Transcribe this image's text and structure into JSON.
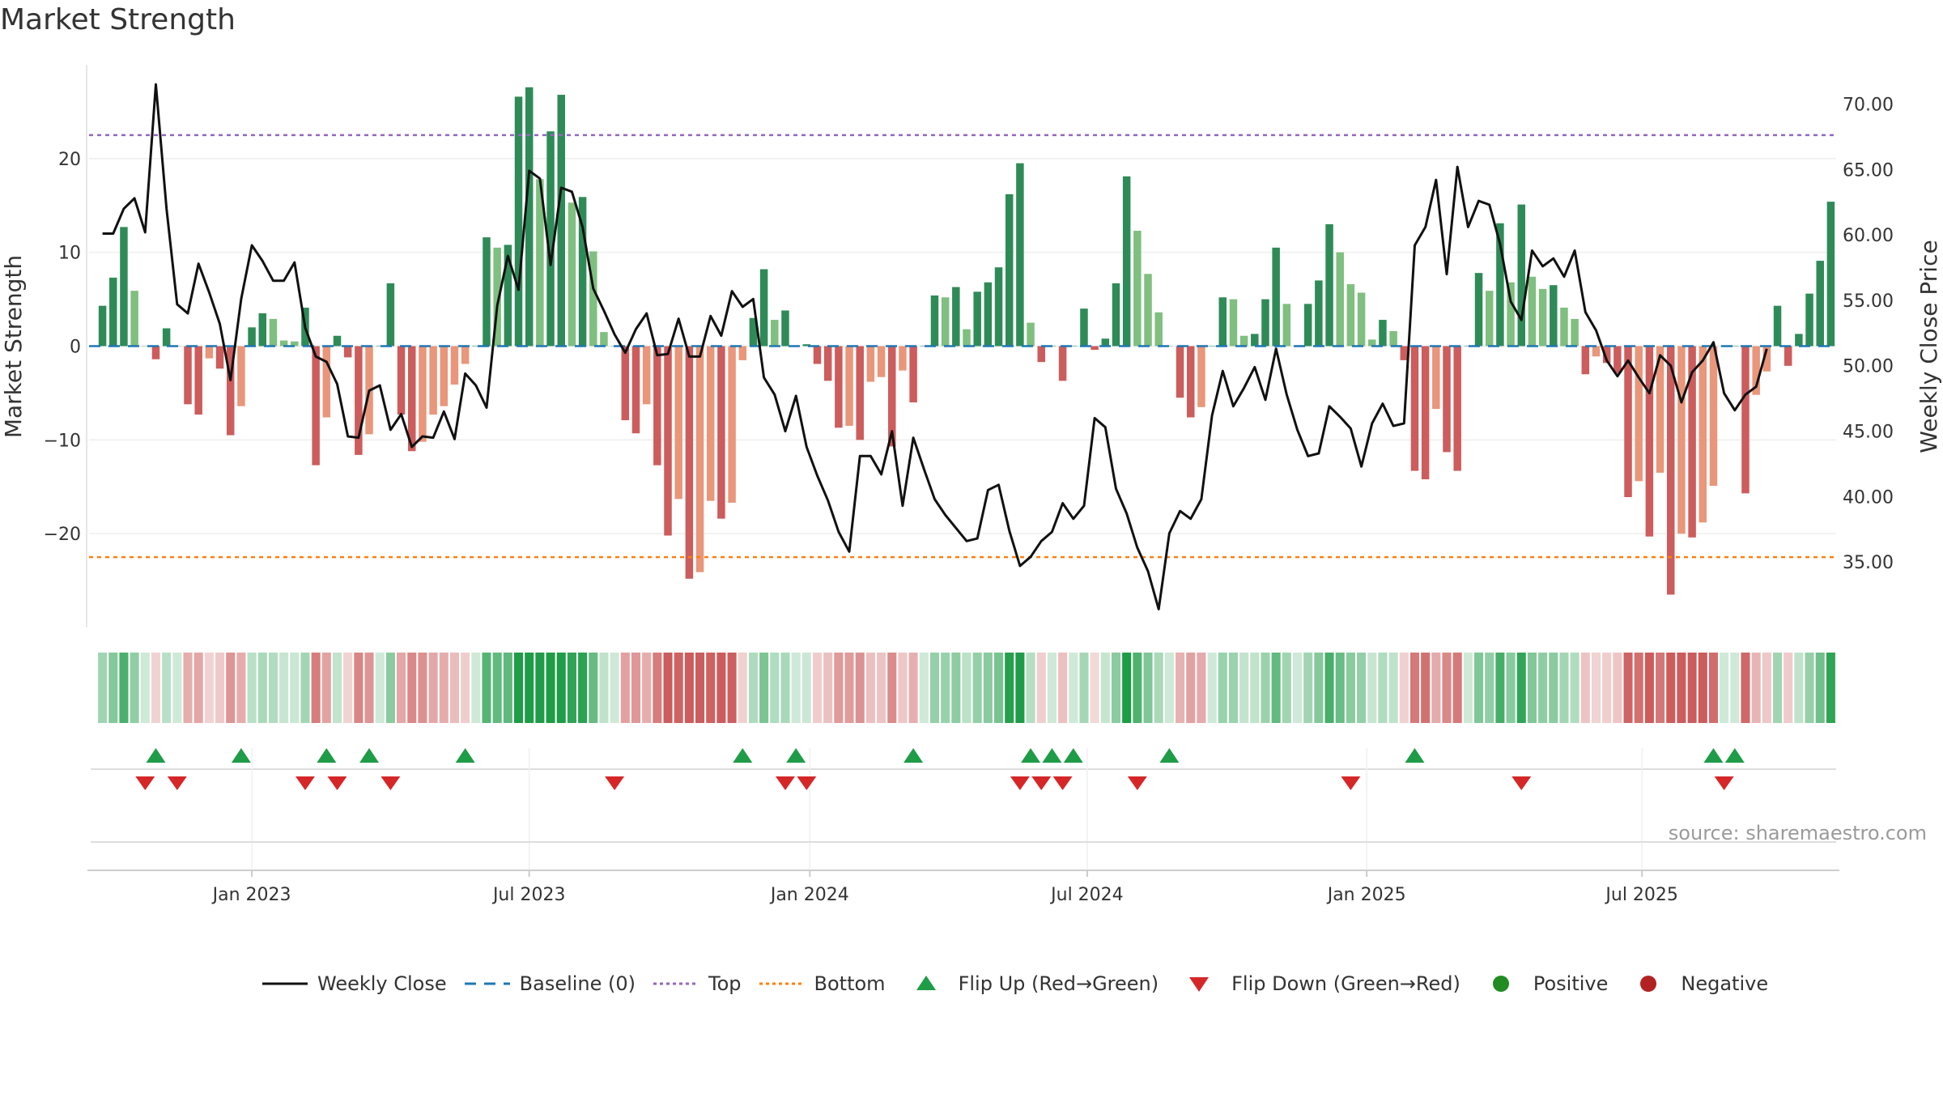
{
  "title": "Market Strength",
  "source": "source: sharemaestro.com",
  "colors": {
    "strong_pos": "#2e8b57",
    "weak_pos": "#7fbf7f",
    "strong_neg": "#cd5c5c",
    "weak_neg": "#e9967a",
    "close": "#111111",
    "baseline": "#1f77b4",
    "top": "#9467bd",
    "bottom": "#ff7f0e",
    "flip_up": "#1e9c47",
    "flip_down": "#d62728",
    "positive": "#228b22",
    "negative": "#b22222"
  },
  "chart_data": {
    "type": "bar",
    "title": "Market Strength",
    "ylabel": "Market Strength",
    "y2label": "Weekly Close Price",
    "ylim": [
      -30,
      30
    ],
    "y2lim": [
      30,
      73
    ],
    "yticks": [
      -20,
      -10,
      0,
      10,
      20
    ],
    "yticklabels": [
      "−20",
      "−10",
      "0",
      "10",
      "20"
    ],
    "y2ticks": [
      35,
      40,
      45,
      50,
      55,
      60,
      65,
      70
    ],
    "y2ticklabels": [
      "35.00",
      "40.00",
      "45.00",
      "50.00",
      "55.00",
      "60.00",
      "65.00",
      "70.00"
    ],
    "xticks": [
      "Jan 2023",
      "Jul 2023",
      "Jan 2024",
      "Jul 2024",
      "Jan 2025",
      "Jul 2025"
    ],
    "xtick_positions": [
      14,
      40,
      66.3,
      92.3,
      118.5,
      144.3
    ],
    "top_level": 22.5,
    "bottom_level": -22.5,
    "baseline": 0,
    "strength": [
      4.3,
      7.3,
      12.7,
      5.9,
      0.0,
      -1.4,
      1.9,
      0.0,
      -6.2,
      -7.3,
      -1.3,
      -2.4,
      -9.5,
      -6.4,
      2.0,
      3.5,
      2.9,
      0.6,
      0.5,
      4.1,
      -12.7,
      -7.6,
      1.1,
      -1.2,
      -11.6,
      -9.4,
      0.0,
      6.7,
      -7.3,
      -11.2,
      -10.2,
      -7.3,
      -6.4,
      -4.1,
      -1.9,
      0.0,
      11.6,
      10.5,
      10.8,
      26.6,
      27.6,
      17.8,
      22.9,
      26.8,
      15.3,
      15.9,
      10.1,
      1.5,
      0.0,
      -7.9,
      -9.3,
      -6.2,
      -12.7,
      -20.2,
      -16.3,
      -24.8,
      -24.1,
      -16.5,
      -18.4,
      -16.7,
      -1.5,
      3.0,
      8.2,
      2.8,
      3.8,
      0.0,
      0.2,
      -1.9,
      -3.7,
      -8.7,
      -8.5,
      -10.0,
      -3.8,
      -3.3,
      -10.7,
      -2.6,
      -6.0,
      0.0,
      5.4,
      5.2,
      6.3,
      1.8,
      5.8,
      6.8,
      8.4,
      16.2,
      19.5,
      2.5,
      -1.7,
      0.0,
      -3.7,
      0.0,
      4.0,
      -0.4,
      0.8,
      6.7,
      18.1,
      12.3,
      7.7,
      3.6,
      0.0,
      -5.5,
      -7.6,
      -6.5,
      0.0,
      5.2,
      5.0,
      1.1,
      1.3,
      5.0,
      10.5,
      4.5,
      0.0,
      4.5,
      7.0,
      13.0,
      10.0,
      6.6,
      5.7,
      0.7,
      2.8,
      1.6,
      -1.5,
      -13.3,
      -14.2,
      -6.7,
      -11.3,
      -13.3,
      0.0,
      7.8,
      5.9,
      13.1,
      6.8,
      15.1,
      7.4,
      6.1,
      6.5,
      4.1,
      2.9,
      -3.0,
      -1.1,
      -1.8,
      -2.9,
      -16.1,
      -14.4,
      -20.3,
      -13.5,
      -26.5,
      -20.0,
      -20.4,
      -18.8,
      -14.9,
      0.0,
      0.0,
      -15.7,
      -5.2,
      -2.7,
      4.3,
      -2.1,
      1.3,
      5.6,
      9.1,
      15.4
    ],
    "weekly_close": [
      60.1,
      60.1,
      62.0,
      62.8,
      60.2,
      71.5,
      62.0,
      54.7,
      54.0,
      57.8,
      55.6,
      53.2,
      48.9,
      55.1,
      59.2,
      58.0,
      56.5,
      56.5,
      57.9,
      52.9,
      50.7,
      50.3,
      48.6,
      44.6,
      44.5,
      48.1,
      48.5,
      45.1,
      46.3,
      43.8,
      44.6,
      44.5,
      46.5,
      44.4,
      49.4,
      48.5,
      46.8,
      54.6,
      58.4,
      55.8,
      64.9,
      64.3,
      57.7,
      63.6,
      63.3,
      60.6,
      55.9,
      54.2,
      52.4,
      51.0,
      52.8,
      54.0,
      50.8,
      50.9,
      53.6,
      50.7,
      50.7,
      53.8,
      52.3,
      55.7,
      54.5,
      55.1,
      49.1,
      47.8,
      45.0,
      47.7,
      43.8,
      41.6,
      39.7,
      37.3,
      35.8,
      43.1,
      43.1,
      41.7,
      45.0,
      39.3,
      44.5,
      42.1,
      39.8,
      38.6,
      37.6,
      36.6,
      36.8,
      40.5,
      40.9,
      37.4,
      34.7,
      35.4,
      36.6,
      37.3,
      39.5,
      38.3,
      39.3,
      46.0,
      45.3,
      40.6,
      38.7,
      36.1,
      34.3,
      31.4,
      37.2,
      38.9,
      38.3,
      39.8,
      46.2,
      49.6,
      46.9,
      48.3,
      49.9,
      47.4,
      51.3,
      47.8,
      45.1,
      43.1,
      43.3,
      46.9,
      46.1,
      45.2,
      42.3,
      45.6,
      47.1,
      45.4,
      45.6,
      59.2,
      60.6,
      64.2,
      57.0,
      65.2,
      60.6,
      62.6,
      62.3,
      59.3,
      54.9,
      53.5,
      58.8,
      57.6,
      58.2,
      56.8,
      58.8,
      54.1,
      52.7,
      50.4,
      49.2,
      50.4,
      49.1,
      47.9,
      50.8,
      50.0,
      47.2,
      49.5,
      50.4,
      51.8,
      47.9,
      46.6,
      47.8,
      48.4,
      51.3
    ],
    "flip_up_index": [
      5,
      13,
      21,
      25,
      34,
      60,
      65,
      76,
      87,
      89,
      91,
      100,
      123,
      151,
      153
    ],
    "flip_down_index": [
      4,
      7,
      19,
      22,
      27,
      48,
      64,
      66,
      86,
      88,
      90,
      97,
      117,
      133,
      152
    ],
    "series": [
      {
        "name": "Weekly Close"
      },
      {
        "name": "Baseline (0)"
      },
      {
        "name": "Top"
      },
      {
        "name": "Bottom"
      },
      {
        "name": "Flip Up (Red→Green)"
      },
      {
        "name": "Flip Down (Green→Red)"
      },
      {
        "name": "Positive"
      },
      {
        "name": "Negative"
      }
    ]
  },
  "legend": [
    {
      "label": "Weekly Close",
      "symbol": "line"
    },
    {
      "label": "Baseline (0)",
      "symbol": "dash"
    },
    {
      "label": "Top",
      "symbol": "dot-top"
    },
    {
      "label": "Bottom",
      "symbol": "dot-bottom"
    },
    {
      "label": "Flip Up (Red→Green)",
      "symbol": "tri-up"
    },
    {
      "label": "Flip Down (Green→Red)",
      "symbol": "tri-down"
    },
    {
      "label": "Positive",
      "symbol": "circle-pos"
    },
    {
      "label": "Negative",
      "symbol": "circle-neg"
    }
  ]
}
